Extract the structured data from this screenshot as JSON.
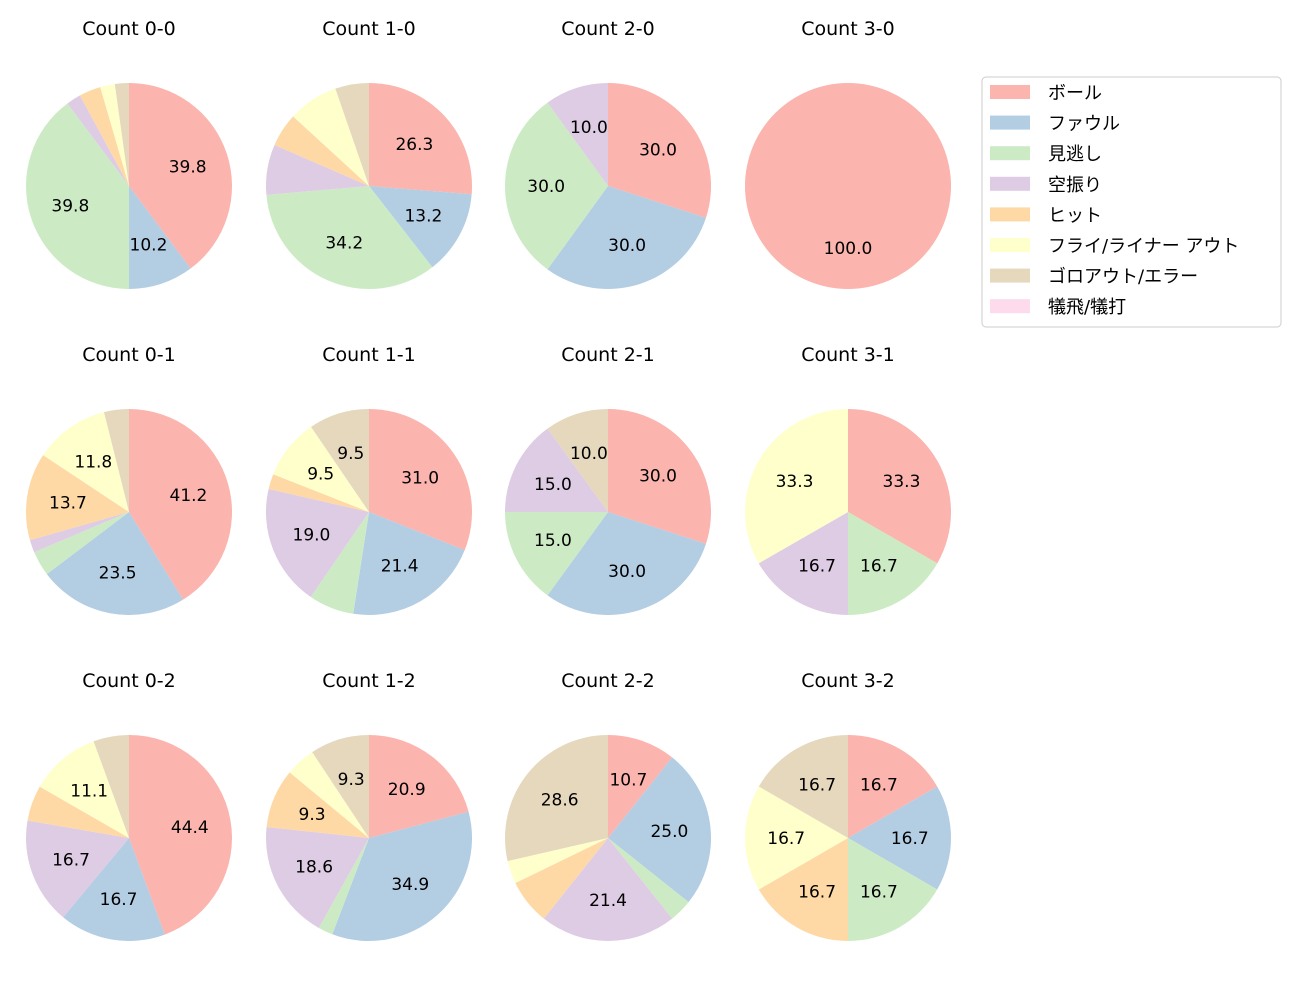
{
  "chart_data": {
    "type": "pie",
    "categories": [
      "ボール",
      "ファウル",
      "見逃し",
      "空振り",
      "ヒット",
      "フライ/ライナー アウト",
      "ゴロアウト/エラー",
      "犠飛/犠打"
    ],
    "colors": [
      "#fbb4ae",
      "#b3cde3",
      "#ccebc5",
      "#decbe4",
      "#fed9a6",
      "#ffffcc",
      "#e5d8bd",
      "#fddaec"
    ],
    "legend_position": "top-right",
    "start_angle": 90,
    "direction": "clockwise",
    "charts": [
      {
        "title": "Count 0-0",
        "values": [
          39.8,
          10.2,
          39.8,
          2.3,
          3.4,
          2.3,
          2.2,
          0
        ]
      },
      {
        "title": "Count 1-0",
        "values": [
          26.3,
          13.2,
          34.2,
          7.9,
          5.3,
          7.9,
          5.3,
          0
        ]
      },
      {
        "title": "Count 2-0",
        "values": [
          30.0,
          30.0,
          30.0,
          10.0,
          0,
          0,
          0,
          0
        ]
      },
      {
        "title": "Count 3-0",
        "values": [
          100.0,
          0,
          0,
          0,
          0,
          0,
          0,
          0
        ]
      },
      {
        "title": "Count 0-1",
        "values": [
          41.2,
          23.5,
          3.9,
          2.0,
          13.7,
          11.8,
          3.9,
          0
        ]
      },
      {
        "title": "Count 1-1",
        "values": [
          31.0,
          21.4,
          7.1,
          19.0,
          2.4,
          9.5,
          9.5,
          0
        ]
      },
      {
        "title": "Count 2-1",
        "values": [
          30.0,
          30.0,
          15.0,
          15.0,
          0,
          0,
          10.0,
          0
        ]
      },
      {
        "title": "Count 3-1",
        "values": [
          33.3,
          0,
          16.7,
          16.7,
          0,
          33.3,
          0,
          0
        ]
      },
      {
        "title": "Count 0-2",
        "values": [
          44.4,
          16.7,
          0,
          16.7,
          5.6,
          11.1,
          5.6,
          0
        ]
      },
      {
        "title": "Count 1-2",
        "values": [
          20.9,
          34.9,
          2.3,
          18.6,
          9.3,
          4.7,
          9.3,
          0
        ]
      },
      {
        "title": "Count 2-2",
        "values": [
          10.7,
          25.0,
          3.6,
          21.4,
          7.1,
          3.6,
          28.6,
          0
        ]
      },
      {
        "title": "Count 3-2",
        "values": [
          16.7,
          16.7,
          16.7,
          0,
          16.7,
          16.7,
          16.7,
          0
        ]
      }
    ]
  }
}
